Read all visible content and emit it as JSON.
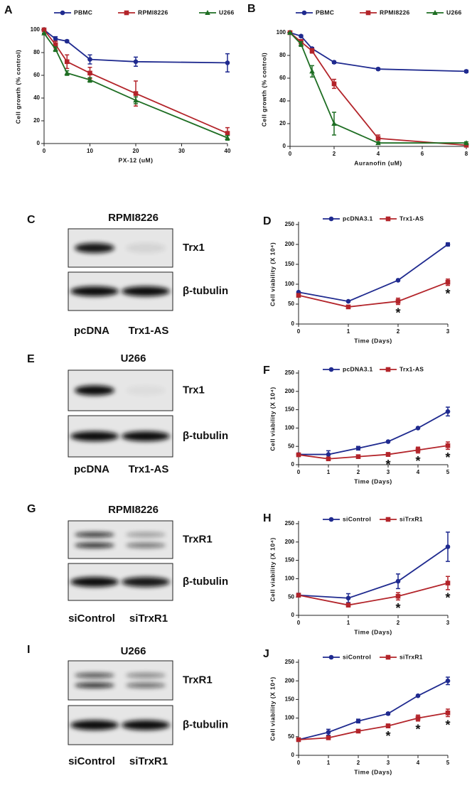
{
  "chart_data": [
    {
      "type": "line",
      "label": "A",
      "xlabel": "PX-12 (uM)",
      "ylabel": "Cell growth (% control)",
      "x": [
        0,
        2.5,
        5,
        10,
        20,
        40
      ],
      "xlim": [
        0,
        40
      ],
      "xticks": [
        0,
        10,
        20,
        30,
        40
      ],
      "ylim": [
        0,
        100
      ],
      "yticks": [
        0,
        20,
        40,
        60,
        80,
        100
      ],
      "legend": "top",
      "series": [
        {
          "name": "PBMC",
          "color": "#1f2a8f",
          "marker": "circle",
          "values": [
            100,
            92,
            90,
            74,
            72,
            71
          ],
          "errors": [
            0,
            2,
            1,
            4,
            4,
            8
          ]
        },
        {
          "name": "RPMI8226",
          "color": "#b3242a",
          "marker": "square",
          "values": [
            100,
            87,
            72,
            62,
            44,
            9
          ],
          "errors": [
            0,
            3,
            6,
            5,
            11,
            5
          ]
        },
        {
          "name": "U266",
          "color": "#1e6e23",
          "marker": "triangle",
          "values": [
            97,
            83,
            62,
            56,
            38,
            5
          ],
          "errors": [
            0,
            2,
            2,
            2,
            3,
            2
          ]
        }
      ]
    },
    {
      "type": "line",
      "label": "B",
      "xlabel": "Auranofin (uM)",
      "ylabel": "Cell growth (% control)",
      "x": [
        0,
        0.5,
        1,
        2,
        4,
        8
      ],
      "xlim": [
        0,
        8
      ],
      "xticks": [
        0,
        2,
        4,
        6,
        8
      ],
      "ylim": [
        0,
        100
      ],
      "yticks": [
        0,
        20,
        40,
        60,
        80,
        100
      ],
      "legend": "top",
      "series": [
        {
          "name": "PBMC",
          "color": "#1f2a8f",
          "marker": "circle",
          "values": [
            100,
            97,
            86,
            74,
            68,
            66
          ],
          "errors": [
            0,
            1,
            1,
            1,
            1,
            1
          ]
        },
        {
          "name": "RPMI8226",
          "color": "#b3242a",
          "marker": "square",
          "values": [
            100,
            92,
            84,
            55,
            7,
            1
          ],
          "errors": [
            0,
            2,
            2,
            4,
            3,
            1
          ]
        },
        {
          "name": "U266",
          "color": "#1e6e23",
          "marker": "triangle",
          "values": [
            100,
            90,
            66,
            20,
            3,
            3
          ],
          "errors": [
            0,
            2,
            5,
            10,
            1,
            1
          ]
        }
      ]
    },
    {
      "type": "line",
      "label": "D",
      "xlabel": "Time (Days)",
      "ylabel": "Cell viability (X 10⁴)",
      "x": [
        0,
        1,
        2,
        3
      ],
      "xlim": [
        0,
        3
      ],
      "xticks": [
        0,
        1,
        2,
        3
      ],
      "ylim": [
        0,
        250
      ],
      "yticks": [
        0,
        50,
        100,
        150,
        200,
        250
      ],
      "legend": "top",
      "series": [
        {
          "name": "pcDNA3.1",
          "color": "#1f2a8f",
          "marker": "circle",
          "values": [
            80,
            57,
            110,
            200
          ],
          "errors": [
            0,
            0,
            2,
            4
          ]
        },
        {
          "name": "Trx1-AS",
          "color": "#b3242a",
          "marker": "square",
          "values": [
            72,
            43,
            57,
            105
          ],
          "errors": [
            0,
            2,
            8,
            8
          ]
        }
      ],
      "annotations": [
        {
          "text": "*",
          "x": 2
        },
        {
          "text": "*",
          "x": 3
        }
      ]
    },
    {
      "type": "line",
      "label": "F",
      "xlabel": "Time (Days)",
      "ylabel": "Cell viability (X 10⁴)",
      "x": [
        0,
        1,
        2,
        3,
        4,
        5
      ],
      "xlim": [
        0,
        5
      ],
      "xticks": [
        0,
        1,
        2,
        3,
        4,
        5
      ],
      "ylim": [
        0,
        250
      ],
      "yticks": [
        0,
        50,
        100,
        150,
        200,
        250
      ],
      "legend": "top",
      "series": [
        {
          "name": "pcDNA3.1",
          "color": "#1f2a8f",
          "marker": "circle",
          "values": [
            28,
            28,
            45,
            63,
            100,
            145
          ],
          "errors": [
            0,
            10,
            5,
            2,
            2,
            12
          ]
        },
        {
          "name": "Trx1-AS",
          "color": "#b3242a",
          "marker": "square",
          "values": [
            27,
            16,
            22,
            28,
            40,
            52
          ],
          "errors": [
            0,
            3,
            3,
            5,
            8,
            10
          ]
        }
      ],
      "annotations": [
        {
          "text": "*",
          "x": 3
        },
        {
          "text": "*",
          "x": 4
        },
        {
          "text": "*",
          "x": 5
        }
      ]
    },
    {
      "type": "line",
      "label": "H",
      "xlabel": "Time (Days)",
      "ylabel": "Cell viability (X 10⁴)",
      "x": [
        0,
        1,
        2,
        3
      ],
      "xlim": [
        0,
        3
      ],
      "xticks": [
        0,
        1,
        2,
        3
      ],
      "ylim": [
        0,
        250
      ],
      "yticks": [
        0,
        50,
        100,
        150,
        200,
        250
      ],
      "legend": "top",
      "series": [
        {
          "name": "siControl",
          "color": "#1f2a8f",
          "marker": "circle",
          "values": [
            55,
            47,
            93,
            187
          ],
          "errors": [
            5,
            12,
            20,
            40
          ]
        },
        {
          "name": "siTrxR1",
          "color": "#b3242a",
          "marker": "square",
          "values": [
            55,
            28,
            52,
            88
          ],
          "errors": [
            3,
            5,
            10,
            18
          ]
        }
      ],
      "annotations": [
        {
          "text": "*",
          "x": 2
        },
        {
          "text": "*",
          "x": 3
        }
      ]
    },
    {
      "type": "line",
      "label": "J",
      "xlabel": "Time (Days)",
      "ylabel": "Cell viability (X 10⁴)",
      "x": [
        0,
        1,
        2,
        3,
        4,
        5
      ],
      "xlim": [
        0,
        5
      ],
      "xticks": [
        0,
        1,
        2,
        3,
        4,
        5
      ],
      "ylim": [
        0,
        250
      ],
      "yticks": [
        0,
        50,
        100,
        150,
        200,
        250
      ],
      "legend": "top",
      "series": [
        {
          "name": "siControl",
          "color": "#1f2a8f",
          "marker": "circle",
          "values": [
            42,
            62,
            92,
            112,
            160,
            200
          ],
          "errors": [
            3,
            8,
            5,
            3,
            2,
            10
          ]
        },
        {
          "name": "siTrxR1",
          "color": "#b3242a",
          "marker": "square",
          "values": [
            42,
            47,
            65,
            79,
            100,
            114
          ],
          "errors": [
            3,
            3,
            4,
            5,
            8,
            10
          ]
        }
      ],
      "annotations": [
        {
          "text": "*",
          "x": 3
        },
        {
          "text": "*",
          "x": 4
        },
        {
          "text": "*",
          "x": 5
        }
      ]
    }
  ],
  "blots": [
    {
      "label": "C",
      "title": "RPMI8226",
      "bands": [
        "Trx1",
        "β-tubulin"
      ],
      "lanes": [
        "pcDNA",
        "Trx1-AS"
      ]
    },
    {
      "label": "E",
      "title": "U266",
      "bands": [
        "Trx1",
        "β-tubulin"
      ],
      "lanes": [
        "pcDNA",
        "Trx1-AS"
      ]
    },
    {
      "label": "G",
      "title": "RPMI8226",
      "bands": [
        "TrxR1",
        "β-tubulin"
      ],
      "lanes": [
        "siControl",
        "siTrxR1"
      ]
    },
    {
      "label": "I",
      "title": "U266",
      "bands": [
        "TrxR1",
        "β-tubulin"
      ],
      "lanes": [
        "siControl",
        "siTrxR1"
      ]
    }
  ]
}
